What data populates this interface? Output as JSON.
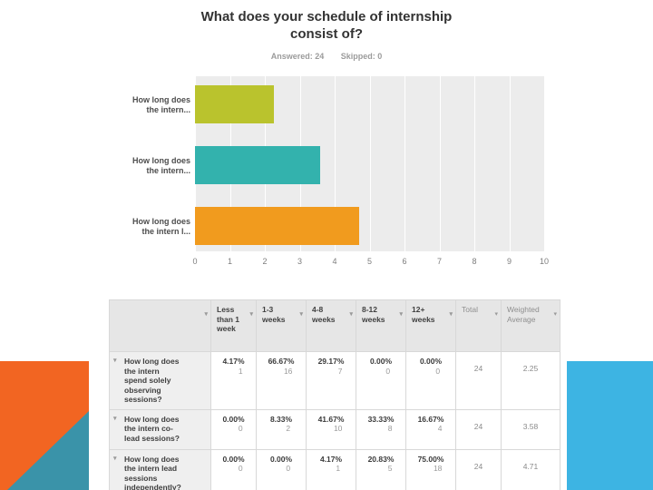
{
  "slide": {
    "title": "What does your schedule of internship\nconsist of?",
    "answered": "Answered: 24",
    "skipped": "Skipped: 0"
  },
  "chart_data": {
    "type": "bar",
    "orientation": "horizontal",
    "title": "What does your schedule of internship consist of?",
    "categories": [
      "How long does the intern spend solely observing sessions?",
      "How long does the intern co-lead sessions?",
      "How long does the intern lead sessions independently?"
    ],
    "category_display_labels": [
      "How long does\nthe intern...",
      "How long does\nthe intern...",
      "How long does\nthe intern l..."
    ],
    "values": [
      2.25,
      3.58,
      4.71
    ],
    "bar_colors": [
      "#bac32d",
      "#33b2ad",
      "#f19b1e"
    ],
    "xlim": [
      0,
      10
    ],
    "x_ticks": [
      "0",
      "1",
      "2",
      "3",
      "4",
      "5",
      "6",
      "7",
      "8",
      "9",
      "10"
    ],
    "plot_background": "#ececec",
    "grid": "vertical white gridlines at each integer",
    "legend": "none"
  },
  "table": {
    "headers": [
      "",
      "Less than 1 week",
      "1-3 weeks",
      "4-8 weeks",
      "8-12 weeks",
      "12+ weeks",
      "Total",
      "Weighted Average"
    ],
    "rows": [
      {
        "question": "How long does the intern spend solely observing sessions?",
        "cells": [
          {
            "pct": "4.17%",
            "count": "1"
          },
          {
            "pct": "66.67%",
            "count": "16"
          },
          {
            "pct": "29.17%",
            "count": "7"
          },
          {
            "pct": "0.00%",
            "count": "0"
          },
          {
            "pct": "0.00%",
            "count": "0"
          }
        ],
        "total": "24",
        "weighted_average": "2.25"
      },
      {
        "question": "How long does the intern co-lead sessions?",
        "cells": [
          {
            "pct": "0.00%",
            "count": "0"
          },
          {
            "pct": "8.33%",
            "count": "2"
          },
          {
            "pct": "41.67%",
            "count": "10"
          },
          {
            "pct": "33.33%",
            "count": "8"
          },
          {
            "pct": "16.67%",
            "count": "4"
          }
        ],
        "total": "24",
        "weighted_average": "3.58"
      },
      {
        "question": "How long does the intern lead sessions independently?",
        "cells": [
          {
            "pct": "0.00%",
            "count": "0"
          },
          {
            "pct": "0.00%",
            "count": "0"
          },
          {
            "pct": "4.17%",
            "count": "1"
          },
          {
            "pct": "20.83%",
            "count": "5"
          },
          {
            "pct": "75.00%",
            "count": "18"
          }
        ],
        "total": "24",
        "weighted_average": "4.71"
      }
    ]
  },
  "icons": {
    "sort_caret": "▾"
  },
  "decorations": {
    "bottom_left_orange": "#f26522",
    "bottom_left_teal": "#3a93a9",
    "bottom_right_blue": "#3db4e3"
  }
}
